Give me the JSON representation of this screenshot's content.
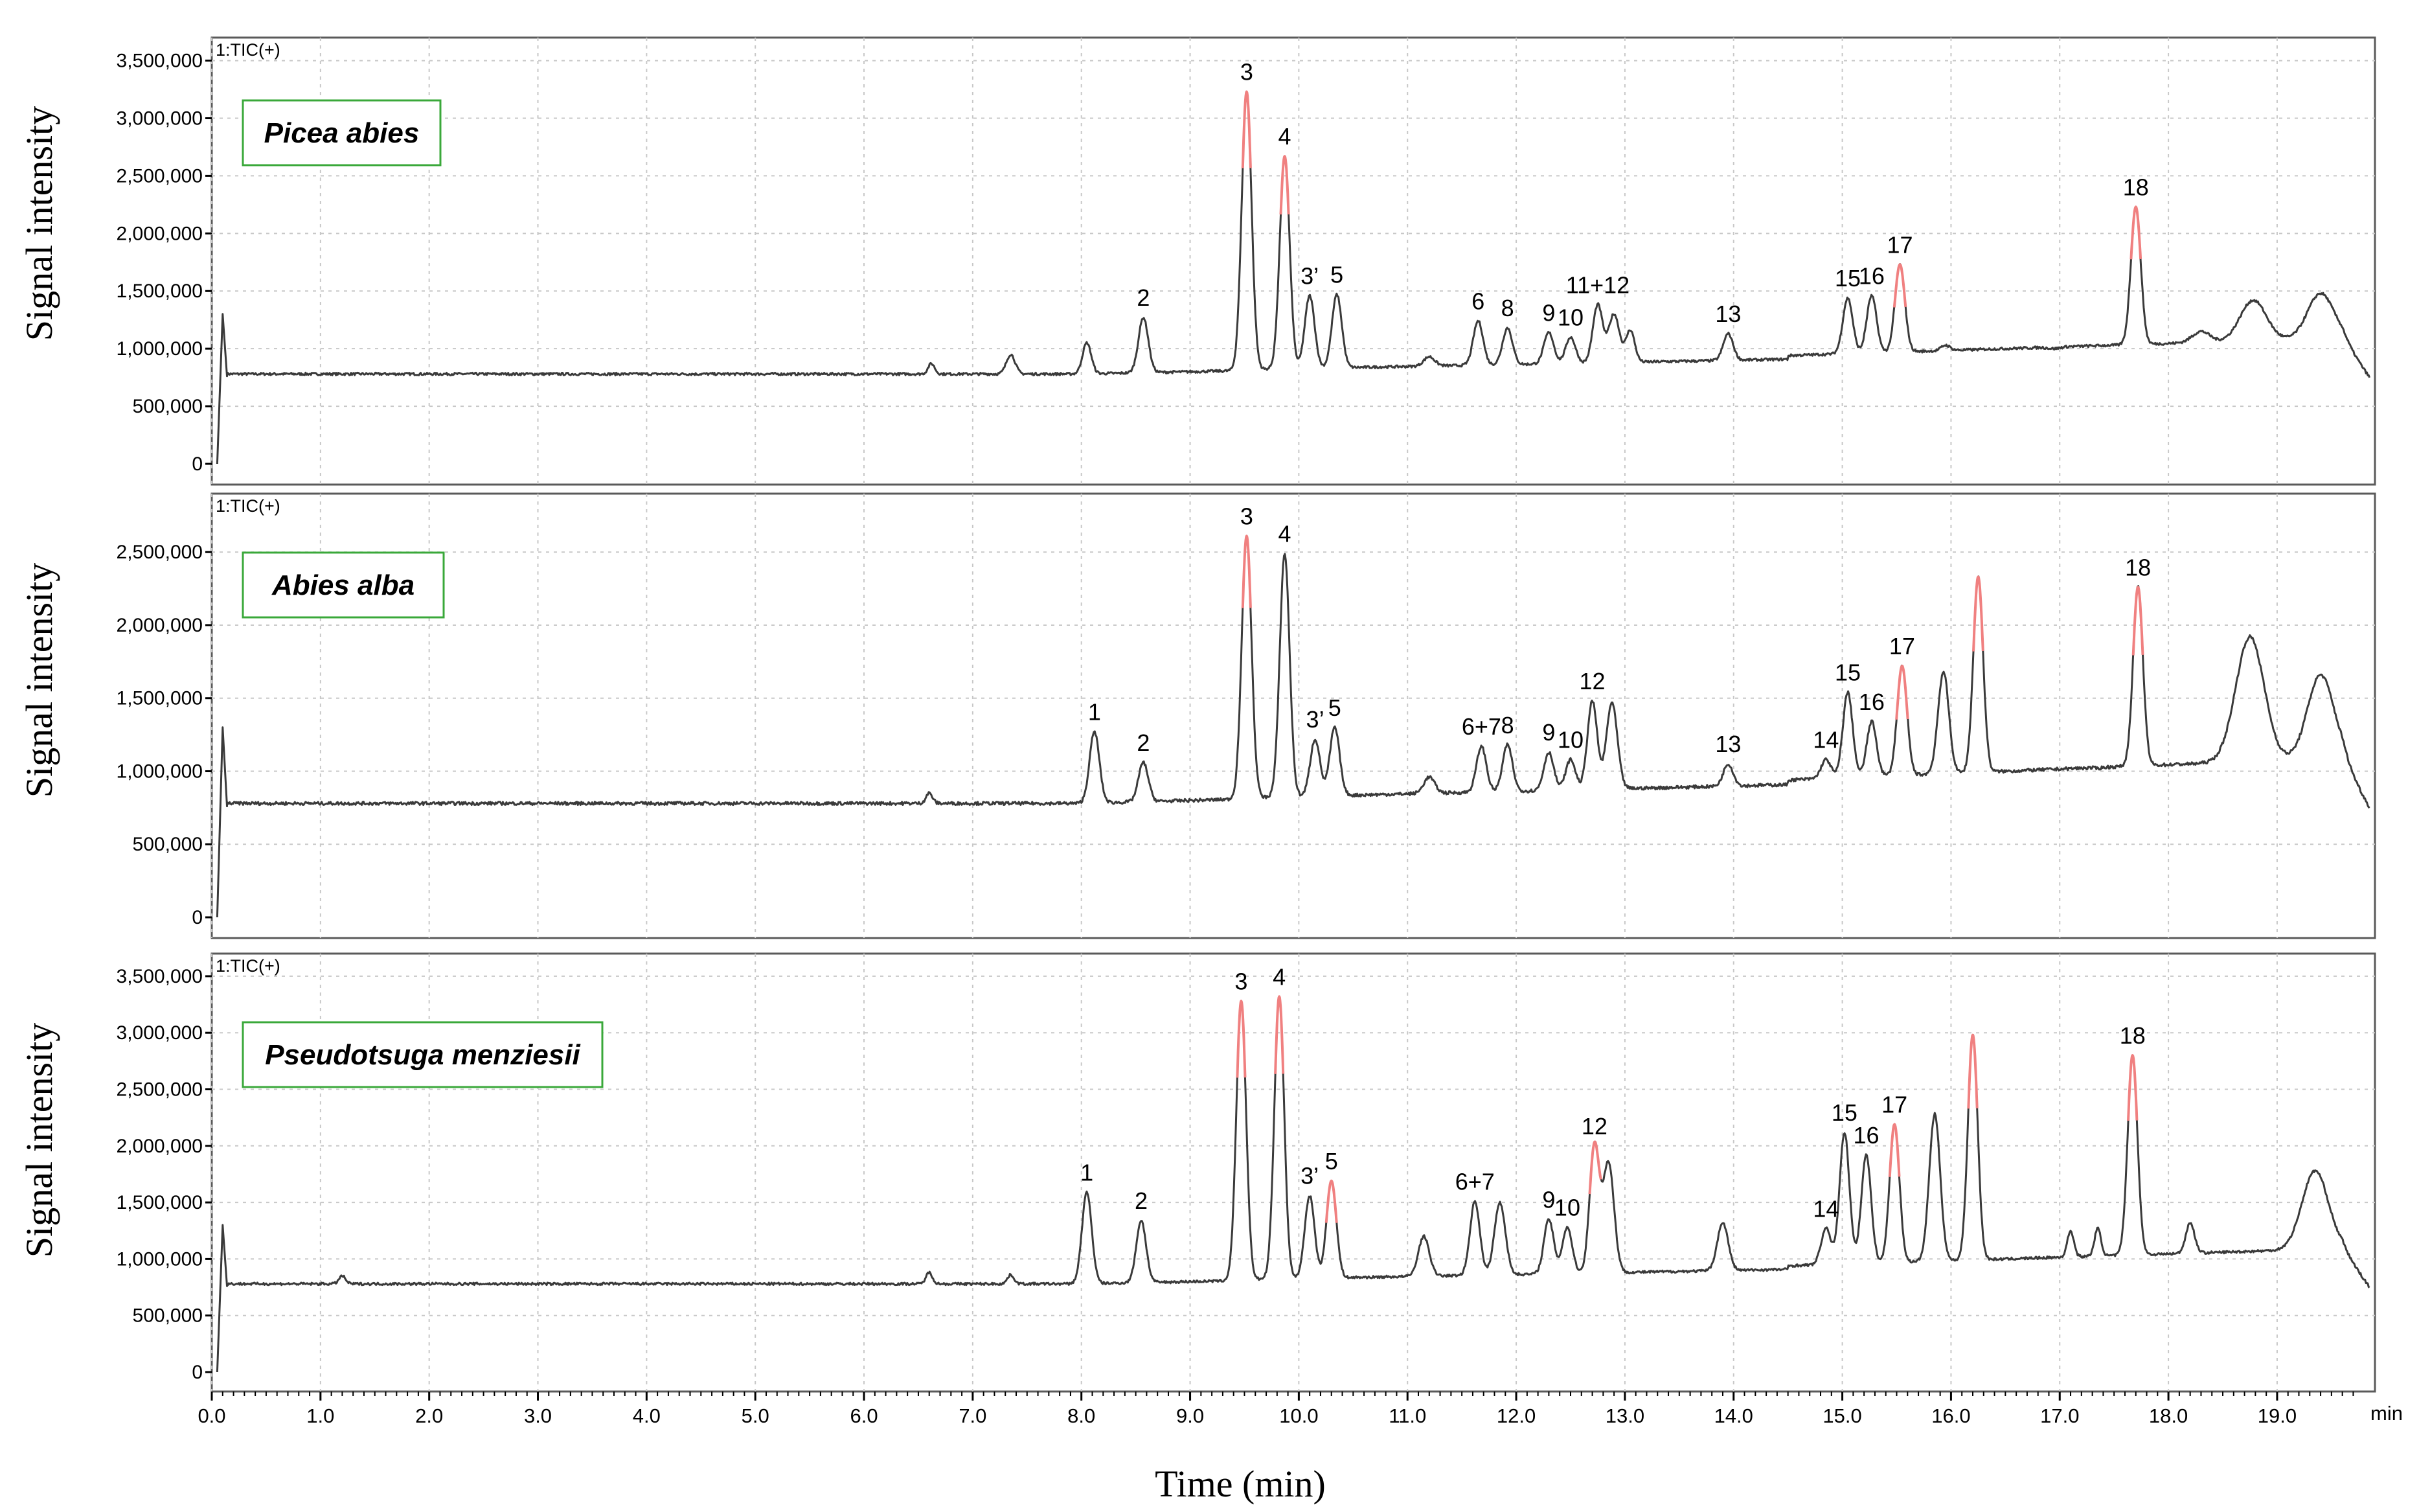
{
  "figure": {
    "ylabel": "Signal intensity",
    "xlabel": "Time (min)",
    "x_unit": "min",
    "x_ticks": [
      "0.0",
      "1.0",
      "2.0",
      "3.0",
      "4.0",
      "5.0",
      "6.0",
      "7.0",
      "8.0",
      "9.0",
      "10.0",
      "11.0",
      "12.0",
      "13.0",
      "14.0",
      "15.0",
      "16.0",
      "17.0",
      "18.0",
      "19.0"
    ],
    "colors": {
      "trace": "#3a3a3a",
      "peak_tip": "#f08080",
      "legend_border": "#3aa83a",
      "grid": "#c8c8c8"
    }
  },
  "chart_data": [
    {
      "type": "line",
      "tic_label": "1:TIC(+)",
      "species": "Picea abies",
      "xlim": [
        0,
        19.9
      ],
      "ylim": [
        0,
        3700000
      ],
      "y_ticks": [
        "3,500,000",
        "3,000,000",
        "2,500,000",
        "2,000,000",
        "1,500,000",
        "1,000,000",
        "500,000",
        "0"
      ],
      "grid": true,
      "peaks": [
        {
          "x": 8.57,
          "y": 1270000,
          "label": "2"
        },
        {
          "x": 9.52,
          "y": 3230000,
          "label": "3",
          "tip": true
        },
        {
          "x": 9.87,
          "y": 2670000,
          "label": "4",
          "tip": true
        },
        {
          "x": 10.1,
          "y": 1460000,
          "label": "3’"
        },
        {
          "x": 10.35,
          "y": 1470000,
          "label": "5"
        },
        {
          "x": 11.65,
          "y": 1240000,
          "label": "6"
        },
        {
          "x": 11.92,
          "y": 1180000,
          "label": "8"
        },
        {
          "x": 12.3,
          "y": 1140000,
          "label": "9"
        },
        {
          "x": 12.5,
          "y": 1100000,
          "label": "10"
        },
        {
          "x": 12.75,
          "y": 1380000,
          "label": "11+12"
        },
        {
          "x": 13.95,
          "y": 1130000,
          "label": "13"
        },
        {
          "x": 15.05,
          "y": 1440000,
          "label": "15"
        },
        {
          "x": 15.27,
          "y": 1460000,
          "label": "16"
        },
        {
          "x": 15.53,
          "y": 1730000,
          "label": "17",
          "tip": true
        },
        {
          "x": 17.7,
          "y": 2230000,
          "label": "18",
          "tip": true
        }
      ]
    },
    {
      "type": "line",
      "tic_label": "1:TIC(+)",
      "species": "Abies alba",
      "xlim": [
        0,
        19.9
      ],
      "ylim": [
        0,
        2900000
      ],
      "y_ticks": [
        "2,500,000",
        "2,000,000",
        "1,500,000",
        "1,000,000",
        "500,000",
        "0"
      ],
      "grid": true,
      "peaks": [
        {
          "x": 8.12,
          "y": 1270000,
          "label": "1"
        },
        {
          "x": 8.57,
          "y": 1060000,
          "label": "2"
        },
        {
          "x": 9.52,
          "y": 2610000,
          "label": "3",
          "tip": true
        },
        {
          "x": 9.87,
          "y": 2490000,
          "label": "4"
        },
        {
          "x": 10.15,
          "y": 1220000,
          "label": "3’"
        },
        {
          "x": 10.33,
          "y": 1300000,
          "label": "5"
        },
        {
          "x": 11.68,
          "y": 1170000,
          "label": "6+7"
        },
        {
          "x": 11.92,
          "y": 1180000,
          "label": "8"
        },
        {
          "x": 12.3,
          "y": 1130000,
          "label": "9"
        },
        {
          "x": 12.5,
          "y": 1080000,
          "label": "10"
        },
        {
          "x": 12.7,
          "y": 1480000,
          "label": "12"
        },
        {
          "x": 13.95,
          "y": 1050000,
          "label": "13"
        },
        {
          "x": 14.85,
          "y": 1080000,
          "label": "14"
        },
        {
          "x": 15.05,
          "y": 1540000,
          "label": "15"
        },
        {
          "x": 15.27,
          "y": 1340000,
          "label": "16"
        },
        {
          "x": 15.55,
          "y": 1720000,
          "label": "17",
          "tip": true
        },
        {
          "x": 16.25,
          "y": 2330000,
          "label": "",
          "tip": true
        },
        {
          "x": 17.72,
          "y": 2260000,
          "label": "18",
          "tip": true
        }
      ]
    },
    {
      "type": "line",
      "tic_label": "1:TIC(+)",
      "species": "Pseudotsuga menziesii",
      "xlim": [
        0,
        19.9
      ],
      "ylim": [
        0,
        3700000
      ],
      "y_ticks": [
        "3,500,000",
        "3,000,000",
        "2,500,000",
        "2,000,000",
        "1,500,000",
        "1,000,000",
        "500,000",
        "0"
      ],
      "grid": true,
      "peaks": [
        {
          "x": 8.05,
          "y": 1590000,
          "label": "1"
        },
        {
          "x": 8.55,
          "y": 1340000,
          "label": "2"
        },
        {
          "x": 9.47,
          "y": 3280000,
          "label": "3",
          "tip": true
        },
        {
          "x": 9.82,
          "y": 3320000,
          "label": "4",
          "tip": true
        },
        {
          "x": 10.1,
          "y": 1560000,
          "label": "3’"
        },
        {
          "x": 10.3,
          "y": 1690000,
          "label": "5",
          "tip": true
        },
        {
          "x": 11.62,
          "y": 1510000,
          "label": "6+7"
        },
        {
          "x": 12.3,
          "y": 1350000,
          "label": "9"
        },
        {
          "x": 12.47,
          "y": 1280000,
          "label": "10"
        },
        {
          "x": 12.72,
          "y": 2000000,
          "label": "12",
          "tip": true
        },
        {
          "x": 14.85,
          "y": 1270000,
          "label": "14"
        },
        {
          "x": 15.02,
          "y": 2120000,
          "label": "15"
        },
        {
          "x": 15.22,
          "y": 1920000,
          "label": "16"
        },
        {
          "x": 15.48,
          "y": 2190000,
          "label": "17",
          "tip": true
        },
        {
          "x": 16.2,
          "y": 2980000,
          "label": "",
          "tip": true
        },
        {
          "x": 17.67,
          "y": 2800000,
          "label": "18",
          "tip": true
        }
      ]
    }
  ]
}
